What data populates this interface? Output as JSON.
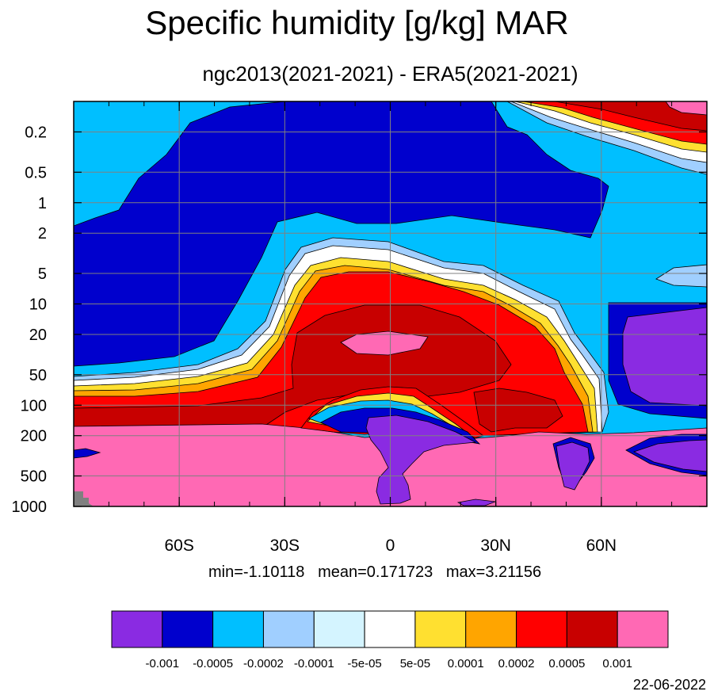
{
  "chart_data": {
    "type": "heatmap",
    "title": "Specific humidity [g/kg] MAR",
    "subtitle": "ngc2013(2021-2021) - ERA5(2021-2021)",
    "xlabel": "",
    "ylabel": "",
    "x_ticks": [
      "60S",
      "30S",
      "0",
      "30N",
      "60N"
    ],
    "x_tick_values": [
      -60,
      -30,
      0,
      30,
      60
    ],
    "xlim": [
      -90,
      90
    ],
    "y_ticks": [
      "0.2",
      "0.5",
      "1",
      "2",
      "5",
      "10",
      "20",
      "50",
      "100",
      "200",
      "500",
      "1000"
    ],
    "y_tick_values": [
      0.2,
      0.5,
      1,
      2,
      5,
      10,
      20,
      50,
      100,
      200,
      500,
      1000
    ],
    "y_scale": "log",
    "y_inverted": true,
    "grid": true,
    "colorbar": {
      "levels": [
        "-0.001",
        "-0.0005",
        "-0.0002",
        "-0.0001",
        "-5e-05",
        "5e-05",
        "0.0001",
        "0.0002",
        "0.0005",
        "0.001"
      ],
      "colors": [
        "#8a2be2",
        "#0000cd",
        "#00bfff",
        "#a0cfff",
        "#d4f4ff",
        "#ffffff",
        "#ffe030",
        "#ffa500",
        "#ff0000",
        "#c80000",
        "#ff69b4"
      ]
    },
    "stats": {
      "min_label": "min=-1.10118",
      "mean_label": "mean=0.171723",
      "max_label": "max=3.21156"
    }
  },
  "footer": {
    "date": "22-06-2022"
  }
}
